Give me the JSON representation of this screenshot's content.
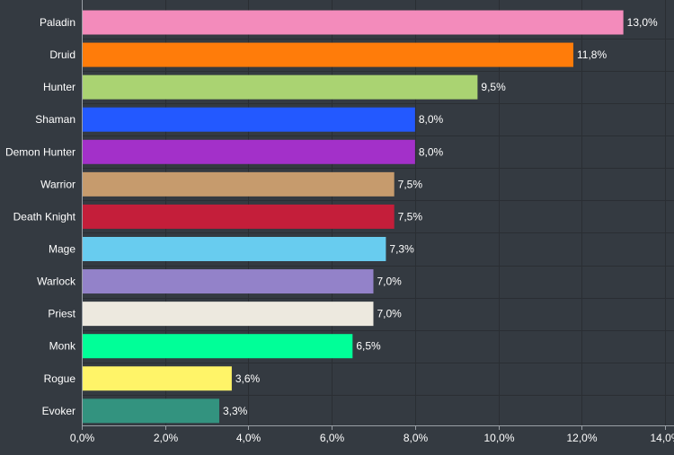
{
  "chart_data": {
    "type": "bar",
    "orientation": "horizontal",
    "categories": [
      "Paladin",
      "Druid",
      "Hunter",
      "Shaman",
      "Demon Hunter",
      "Warrior",
      "Death Knight",
      "Mage",
      "Warlock",
      "Priest",
      "Monk",
      "Rogue",
      "Evoker"
    ],
    "values": [
      13.0,
      11.8,
      9.5,
      8.0,
      8.0,
      7.5,
      7.5,
      7.3,
      7.0,
      7.0,
      6.5,
      3.6,
      3.3
    ],
    "value_labels": [
      "13,0%",
      "11,8%",
      "9,5%",
      "8,0%",
      "8,0%",
      "7,5%",
      "7,5%",
      "7,3%",
      "7,0%",
      "7,0%",
      "6,5%",
      "3,6%",
      "3,3%"
    ],
    "colors": [
      "#f38bbb",
      "#ff7c0a",
      "#aad372",
      "#2359ff",
      "#a330c9",
      "#c69b6d",
      "#c41e3a",
      "#68ccef",
      "#9382c9",
      "#ede9df",
      "#00ff98",
      "#fff468",
      "#33937f"
    ],
    "xlim": [
      0,
      14
    ],
    "x_ticks": [
      0,
      2,
      4,
      6,
      8,
      10,
      12,
      14
    ],
    "x_tick_labels": [
      "0,0%",
      "2,0%",
      "4,0%",
      "6,0%",
      "8,0%",
      "10,0%",
      "12,0%",
      "14,0%"
    ],
    "grid": true,
    "background": "#343a41"
  }
}
